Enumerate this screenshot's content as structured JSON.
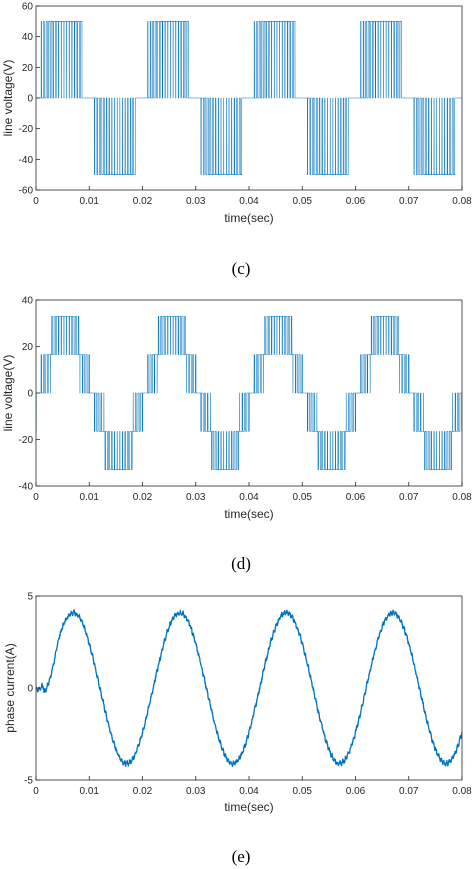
{
  "chart_data": [
    {
      "type": "line",
      "caption": "(c)",
      "xlabel": "time(sec)",
      "ylabel": "line voltage(V)",
      "xlim": [
        0,
        0.08
      ],
      "ylim": [
        -60,
        60
      ],
      "x_ticks": [
        "0",
        "0.01",
        "0.02",
        "0.03",
        "0.04",
        "0.05",
        "0.06",
        "0.07",
        "0.08"
      ],
      "y_ticks": [
        "60",
        "40",
        "20",
        "0",
        "-20",
        "-40",
        "-60"
      ],
      "grid": false,
      "color": "#0072BD",
      "series": [
        {
          "signal": "pwm",
          "levels": [
            50,
            0,
            -50
          ],
          "step_levels": [
            0,
            50,
            0,
            -50
          ],
          "fundamental_hz": 50,
          "carrier_hz": 2000
        }
      ]
    },
    {
      "type": "line",
      "caption": "(d)",
      "xlabel": "time(sec)",
      "ylabel": "line voltage(V)",
      "xlim": [
        0,
        0.08
      ],
      "ylim": [
        -40,
        40
      ],
      "x_ticks": [
        "0",
        "0.01",
        "0.02",
        "0.03",
        "0.04",
        "0.05",
        "0.06",
        "0.07",
        "0.08"
      ],
      "y_ticks": [
        "40",
        "20",
        "0",
        "-20",
        "-40"
      ],
      "grid": false,
      "color": "#0072BD",
      "series": [
        {
          "signal": "multilevel-pwm",
          "levels": [
            33,
            16.5,
            0,
            -16.5,
            -33
          ],
          "fundamental_hz": 50,
          "carrier_hz": 2000
        }
      ]
    },
    {
      "type": "line",
      "caption": "(e)",
      "xlabel": "time(sec)",
      "ylabel": "phase current(A)",
      "xlim": [
        0,
        0.08
      ],
      "ylim": [
        -5,
        5
      ],
      "x_ticks": [
        "0",
        "0.01",
        "0.02",
        "0.03",
        "0.04",
        "0.05",
        "0.06",
        "0.07",
        "0.08"
      ],
      "y_ticks": [
        "5",
        "0",
        "-5"
      ],
      "grid": false,
      "color": "#0072BD",
      "series": [
        {
          "signal": "sine",
          "amplitude": 4.1,
          "frequency_hz": 50,
          "peak_times": [
            0.007,
            0.027,
            0.047,
            0.067
          ],
          "trough_times": [
            0.017,
            0.037,
            0.057,
            0.077
          ],
          "start_value": 0
        }
      ]
    }
  ]
}
